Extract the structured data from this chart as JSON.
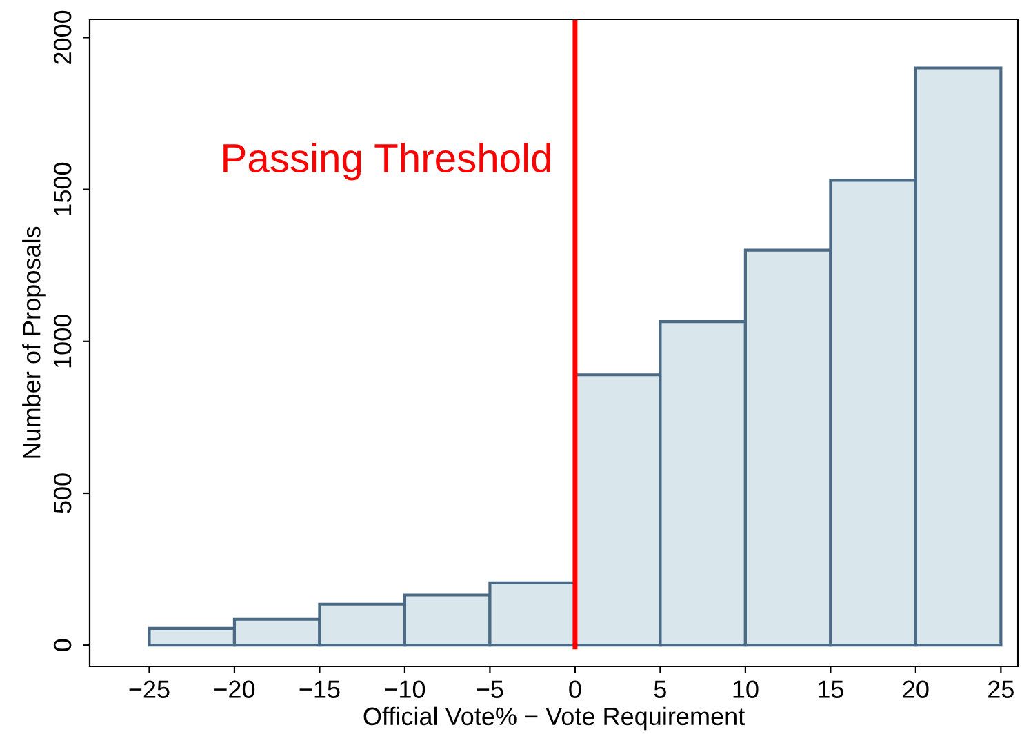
{
  "chart_data": {
    "type": "histogram",
    "xlabel": "Official Vote% − Vote Requirement",
    "ylabel": "Number of Proposals",
    "bins": [
      -25,
      -20,
      -15,
      -10,
      -5,
      0,
      5,
      10,
      15,
      20,
      25
    ],
    "values": [
      55,
      85,
      135,
      165,
      205,
      890,
      1065,
      1300,
      1530,
      1900
    ],
    "color": "#d9e6ec",
    "xlim": [
      -28.5,
      26
    ],
    "ylim": [
      -70,
      2060
    ],
    "xticks": [
      -25,
      -20,
      -15,
      -10,
      -5,
      0,
      5,
      10,
      15,
      20,
      25
    ],
    "yticks": [
      0,
      500,
      1000,
      1500,
      2000
    ],
    "ref_lines": [
      {
        "axis": "x",
        "value": 0,
        "label": "Passing Threshold",
        "color": "#ff0000",
        "line_style": "solid"
      }
    ],
    "grid": false,
    "legend": false
  }
}
